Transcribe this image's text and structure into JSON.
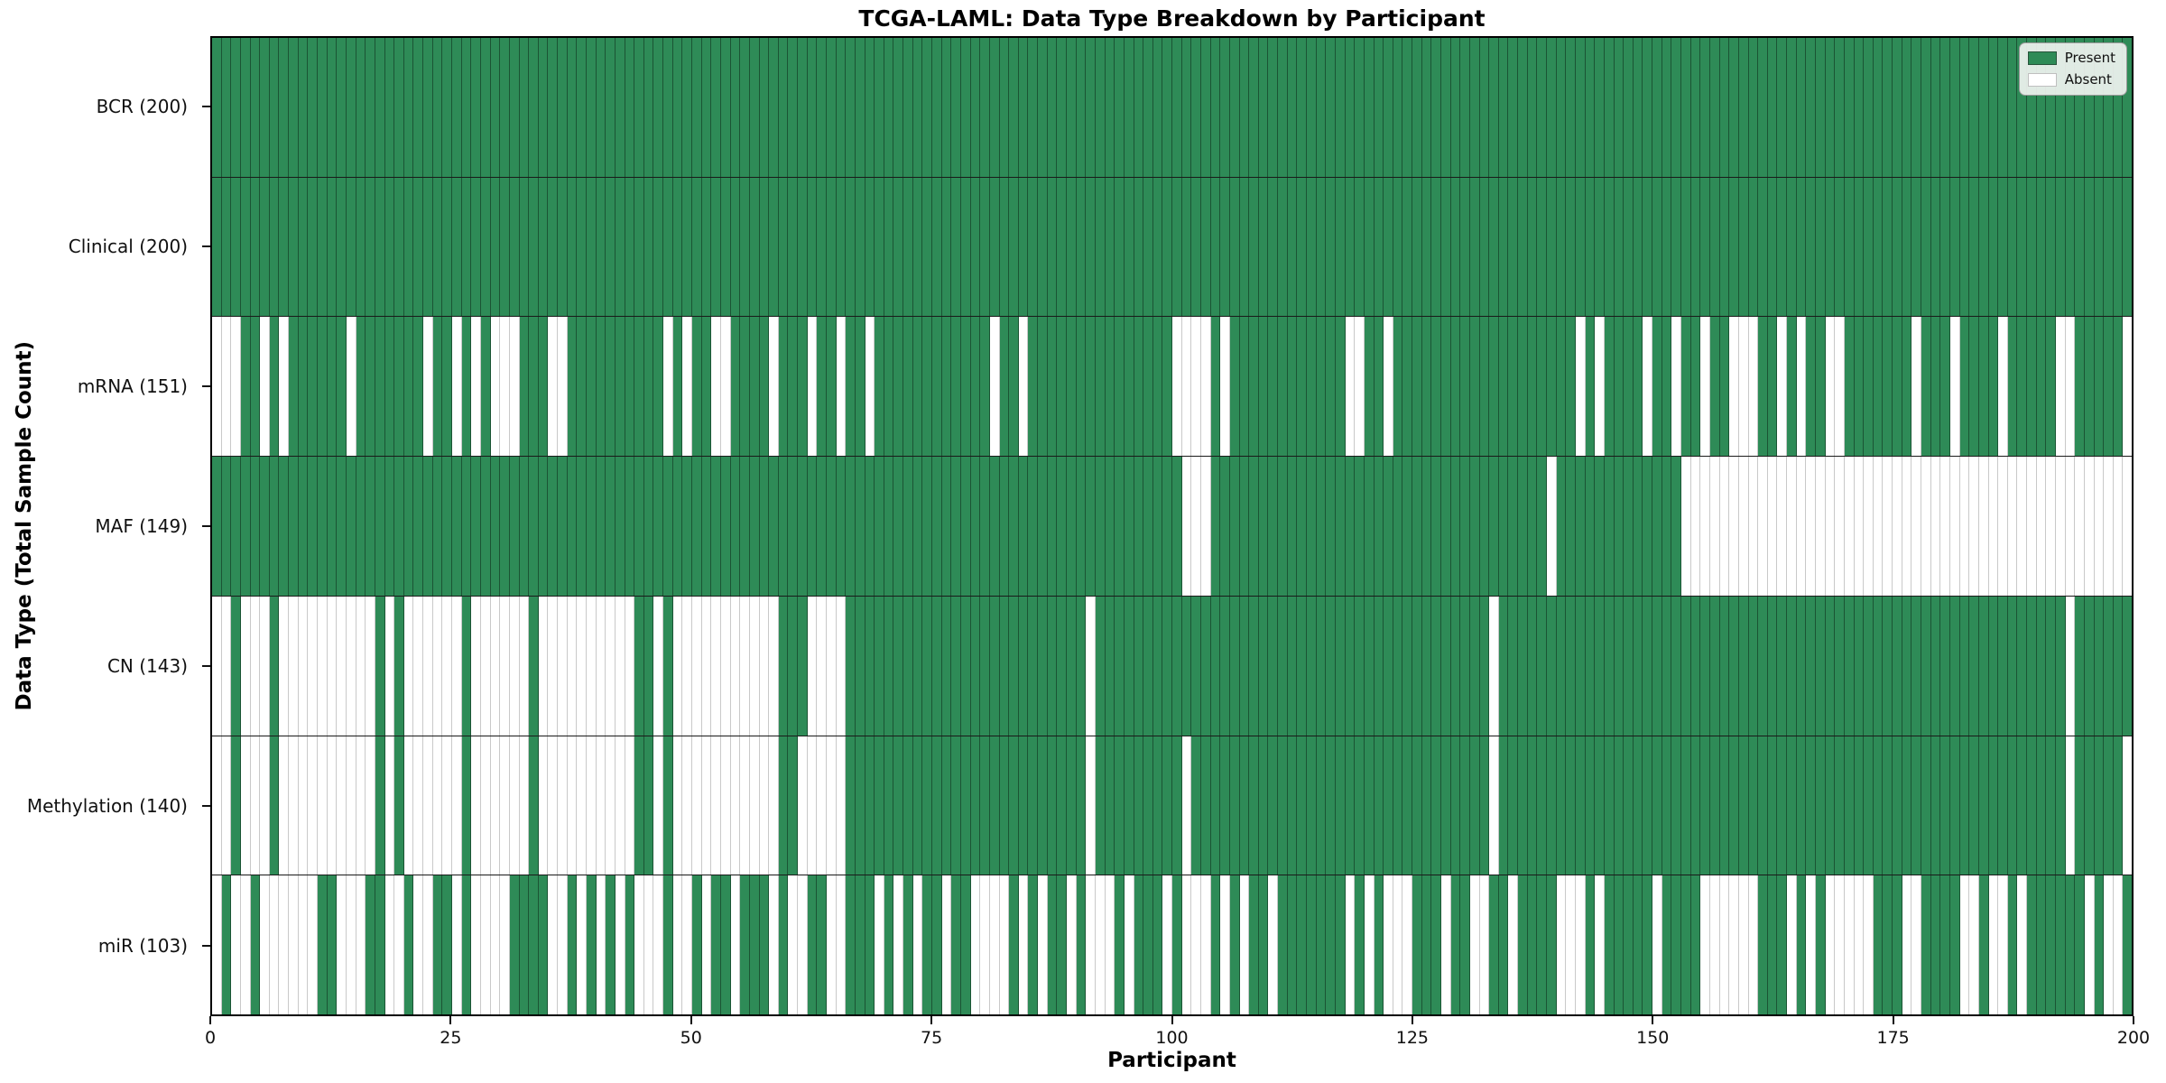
{
  "title": "TCGA-LAML: Data Type Breakdown by Participant",
  "axes": {
    "xlabel": "Participant",
    "ylabel": "Data Type (Total Sample Count)"
  },
  "legend": {
    "present_label": "Present",
    "absent_label": "Absent"
  },
  "colors": {
    "present": "#2e8b57",
    "absent": "#ffffff",
    "present_border": "rgba(12,40,24,0.55)",
    "absent_border": "#c9c9c9",
    "legend_bg": "rgba(240,243,240,0.92)"
  },
  "chart_data": {
    "type": "heatmap",
    "title": "TCGA-LAML: Data Type Breakdown by Participant",
    "xlabel": "Participant",
    "ylabel": "Data Type (Total Sample Count)",
    "legend": [
      "Present",
      "Absent"
    ],
    "legend_position": "upper right",
    "x_range": [
      0,
      200
    ],
    "x_ticks": [
      0,
      25,
      50,
      75,
      100,
      125,
      150,
      175,
      200
    ],
    "n_participants": 200,
    "cell_values": "1 = Present (green), 0 = Absent (white)",
    "rows": [
      {
        "name": "BCR",
        "label": "BCR (200)",
        "total": 200,
        "pattern": "11111111111111111111111111111111111111111111111111111111111111111111111111111111111111111111111111111111111111111111111111111111111111111111111111111111111111111111111111111111111111111111111111111111"
      },
      {
        "name": "Clinical",
        "label": "Clinical (200)",
        "total": 200,
        "pattern": "11111111111111111111111111111111111111111111111111111111111111111111111111111111111111111111111111111111111111111111111111111111111111111111111111111111111111111111111111111111111111111111111111111111"
      },
      {
        "name": "mRNA",
        "label": "mRNA (151)",
        "total": 151,
        "pattern": "00011010111111011111110110101000111001111111111010110011110111011011011111111111101101111111111111110000101111111111110011011111111111111111110101111011011011000110101100111111101110111101111100111 11"
      },
      {
        "name": "MAF",
        "label": "MAF (149)",
        "total": 149,
        "pattern": "11111111111111111111111111111111111111111111111111111111111111111111111111111111111111111111111111111000111111111111111111111111111111111110111111111111100000000000000000000000000000000000000000000000"
      },
      {
        "name": "CN",
        "label": "CN (143)",
        "total": 143,
        "pattern": "00100010000000000101000000100000010000000000110100000000000111000011111111111111111111111110111111111111111111111111111111111111111110111111111111111111111111111111111111111111111111111111111110111111111"
      },
      {
        "name": "Methylation",
        "label": "Methylation (140)",
        "total": 140,
        "pattern": "00100010000000000101000000100000010000000000110100000000000110000011111111111111111111111110111111111011111111111111111111111111111110111111111111111111111111111111111111111111111111111111111110111110111111111"
      },
      {
        "name": "miR",
        "label": "miR (103)",
        "total": 103,
        "pattern": "01001000000110001100100110100001111001010101000100101101110100110011101010110110000101011010001011101000101011011111110101000111011001101111000101111101111000000111010100000111001111001001011111101001"
      }
    ]
  }
}
